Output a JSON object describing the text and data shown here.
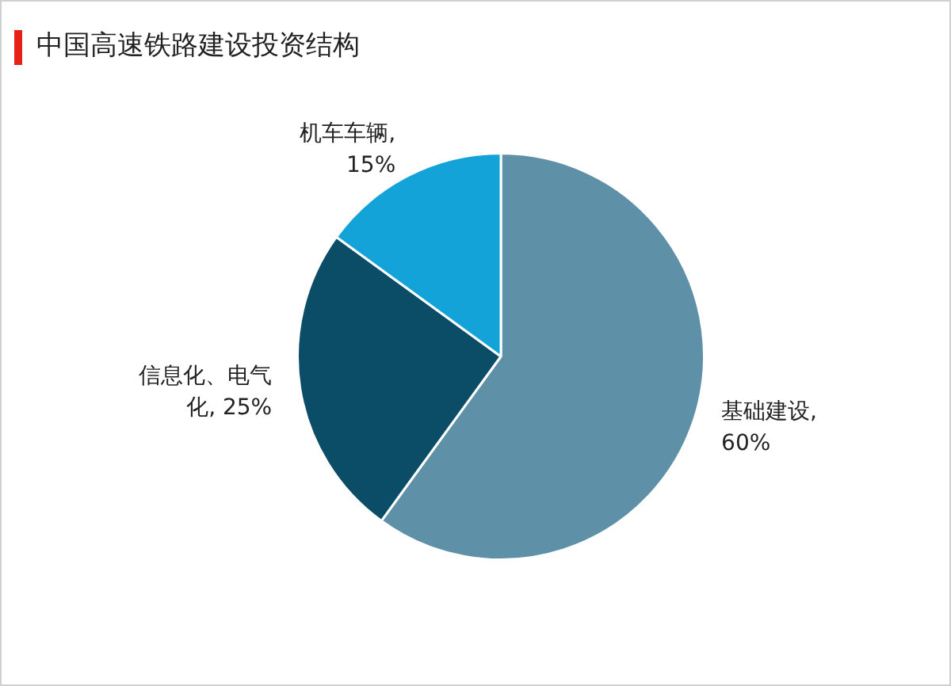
{
  "chart_data": {
    "type": "pie",
    "title": "中国高速铁路建设投资结构",
    "categories": [
      "基础建设",
      "信息化、电气化",
      "机车车辆"
    ],
    "values": [
      60,
      25,
      15
    ],
    "value_labels": [
      ", 60%",
      ", 25%",
      ", 15%"
    ],
    "colors": [
      "#5e91a8",
      "#0b4d67",
      "#13a3d9"
    ],
    "legend": false
  }
}
